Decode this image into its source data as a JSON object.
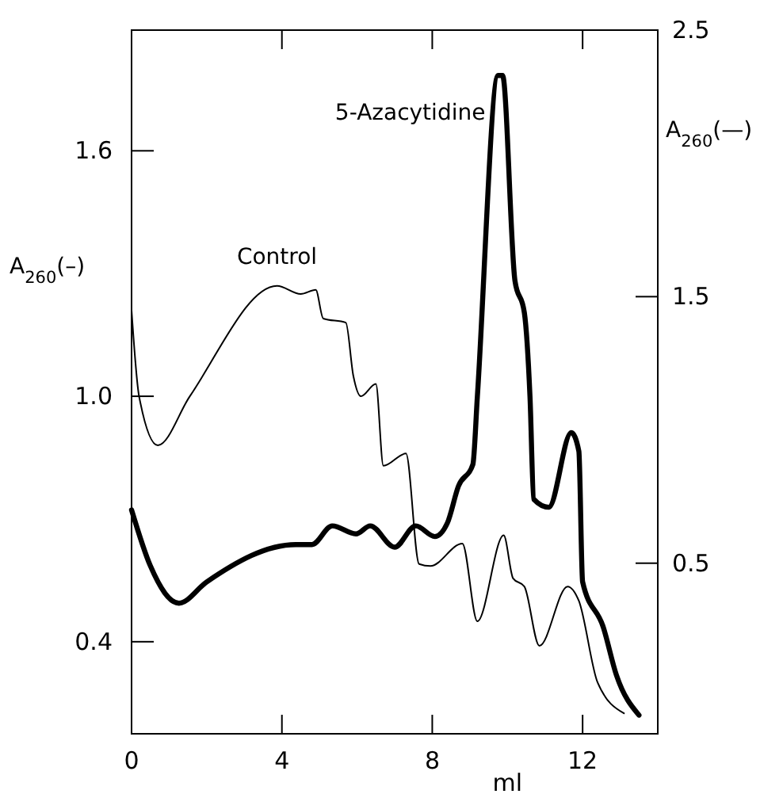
{
  "chart_data": {
    "type": "line",
    "xlabel": "ml",
    "ylabel": "A$_{260}$(–)",
    "y2label": "A$_{260}$(—)",
    "xlim": [
      0,
      14
    ],
    "xticks": [
      0,
      4,
      8,
      12
    ],
    "ylim": [
      0.175,
      1.895
    ],
    "yticks": [
      0.4,
      {
        "value": 1,
        "label": "1.0"
      },
      1.6
    ],
    "y2lim": [
      -0.14,
      2.5
    ],
    "y2ticks": [
      0.5,
      1.5,
      2.5
    ],
    "grid": false,
    "marker": "none",
    "line_style": "solid",
    "series": [
      {
        "name": "Control",
        "color": "#000000",
        "axis": "y",
        "x": [
          0,
          0.2,
          0.7,
          1.55,
          3.87,
          4.5,
          4.9,
          5.1,
          5.7,
          5.9,
          6.1,
          6.5,
          6.7,
          7.3,
          7.65,
          7.95,
          8.8,
          9.2,
          9.9,
          10.15,
          10.45,
          10.85,
          11.6,
          11.9,
          12.4,
          13.1
        ],
        "values": [
          1.21,
          1.0,
          0.88,
          1.0,
          1.27,
          1.25,
          1.26,
          1.19,
          1.18,
          1.05,
          1.0,
          1.03,
          0.83,
          0.86,
          0.59,
          0.585,
          0.64,
          0.45,
          0.66,
          0.555,
          0.535,
          0.39,
          0.535,
          0.5,
          0.3,
          0.225
        ]
      },
      {
        "name": "5-Azacytidine",
        "color": "#000000",
        "axis": "y2",
        "x": [
          0,
          0.5,
          1.26,
          2.0,
          4.37,
          4.8,
          5.34,
          5.97,
          6.35,
          7.0,
          7.56,
          8.07,
          8.4,
          8.7,
          9.08,
          9.2,
          9.75,
          9.87,
          10.2,
          10.45,
          10.6,
          10.7,
          11.1,
          11.7,
          11.9,
          12.0,
          12.55,
          12.9,
          13.5
        ],
        "values": [
          0.7,
          0.49,
          0.35,
          0.43,
          0.57,
          0.57,
          0.64,
          0.61,
          0.64,
          0.56,
          0.64,
          0.6,
          0.65,
          0.79,
          0.87,
          1.125,
          2.33,
          2.33,
          1.56,
          1.44,
          1.125,
          0.74,
          0.71,
          0.99,
          0.92,
          0.43,
          0.26,
          0.08,
          -0.07
        ]
      }
    ]
  }
}
